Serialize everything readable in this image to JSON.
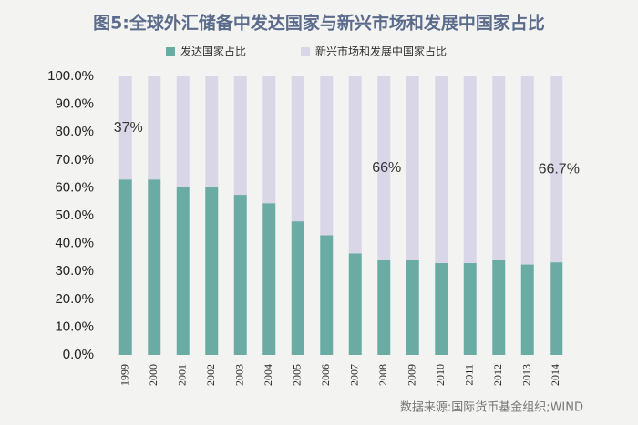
{
  "chart_data": {
    "type": "stacked_bar",
    "title": "图5:全球外汇储备中发达国家与新兴市场和发展中国家占比",
    "source": "数据来源:国际货币基金组织;WIND",
    "categories": [
      "1999",
      "2000",
      "2001",
      "2002",
      "2003",
      "2004",
      "2005",
      "2006",
      "2007",
      "2008",
      "2009",
      "2010",
      "2011",
      "2012",
      "2013",
      "2014"
    ],
    "series": [
      {
        "name": "发达国家占比",
        "color": "#6aaba4",
        "values": [
          63,
          63,
          60.5,
          60.5,
          57.5,
          54.5,
          48,
          43,
          36.5,
          34,
          34,
          33,
          33,
          34,
          32.5,
          33.3
        ]
      },
      {
        "name": "新兴市场和发展中国家占比",
        "color": "#d9d7e7",
        "values": [
          37,
          37,
          39.5,
          39.5,
          42.5,
          45.5,
          52,
          57,
          63.5,
          66,
          66,
          67,
          67,
          66,
          67.5,
          66.7
        ],
        "value_labels": [
          "37%",
          null,
          null,
          null,
          null,
          null,
          null,
          null,
          null,
          "66%",
          null,
          null,
          null,
          null,
          null,
          "66.7%"
        ]
      }
    ],
    "ylim": [
      0,
      100
    ],
    "yticks": [
      {
        "value": 0,
        "label": "0.0%"
      },
      {
        "value": 10,
        "label": "10.0%"
      },
      {
        "value": 20,
        "label": "20.0%"
      },
      {
        "value": 30,
        "label": "30.0%"
      },
      {
        "value": 40,
        "label": "40.0%"
      },
      {
        "value": 50,
        "label": "50.0%"
      },
      {
        "value": 60,
        "label": "60.0%"
      },
      {
        "value": 70,
        "label": "70.0%"
      },
      {
        "value": 80,
        "label": "80.0%"
      },
      {
        "value": 90,
        "label": "90.0%"
      },
      {
        "value": 100,
        "label": "100.0%"
      }
    ],
    "legend": "top"
  }
}
